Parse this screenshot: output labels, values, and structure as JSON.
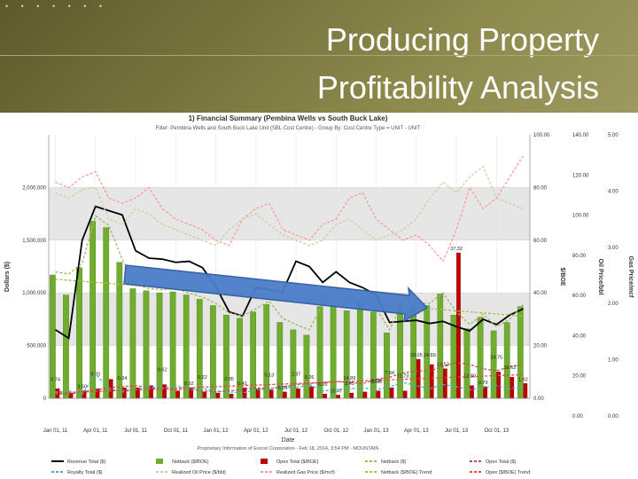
{
  "slide": {
    "title_line1": "Producing Property",
    "title_line2": "Profitability Analysis",
    "dots": "• • • • • • •"
  },
  "chart_data": {
    "type": "bar",
    "title": "1) Financial Summary (Pembina Wells vs South Buck Lake)",
    "subtitle": "Filter: Pembina Wells and South Buck Lake Unit (SBL Cost Centre) - Group By: Cost Centre Type = UNIT - UNIT",
    "xlabel": "Date",
    "ylabel_left": "Dollars ($)",
    "ylabel_right1": "$/BOE",
    "ylabel_right2": "Oil Price/bbl",
    "ylabel_right3": "Gas Price/mcf",
    "footer": "Proprietary Information of Exxcel Corporation - Feb 18, 2014, 3:54 PM - MOUNTAIN",
    "x_ticks": [
      "Jan 01, 11",
      "Apr 01, 11",
      "Jul 01, 11",
      "Oct 01, 11",
      "Jan 01, 12",
      "Apr 01, 12",
      "Jul 01, 12",
      "Oct 01, 12",
      "Jan 01, 13",
      "Apr 01, 13",
      "Jul 01, 13",
      "Oct 01, 13"
    ],
    "left_ticks": [
      "0",
      "500,000",
      "1,000,000",
      "1,500,000",
      "2,000,000"
    ],
    "right1_ticks": [
      "0.00",
      "20.00",
      "40.00",
      "60.00",
      "80.00",
      "100.00"
    ],
    "right2_ticks": [
      "0.00",
      "20.00",
      "40.00",
      "60.00",
      "80.00",
      "100.00",
      "120.00",
      "140.00"
    ],
    "right3_ticks": [
      "0.00",
      "1.00",
      "2.00",
      "3.00",
      "4.00",
      "5.00"
    ],
    "ylim": [
      0,
      2500000
    ],
    "x_months": [
      "2011-01",
      "2011-02",
      "2011-03",
      "2011-04",
      "2011-05",
      "2011-06",
      "2011-07",
      "2011-08",
      "2011-09",
      "2011-10",
      "2011-11",
      "2011-12",
      "2012-01",
      "2012-02",
      "2012-03",
      "2012-04",
      "2012-05",
      "2012-06",
      "2012-07",
      "2012-08",
      "2012-09",
      "2012-10",
      "2012-11",
      "2012-12",
      "2013-01",
      "2013-02",
      "2013-03",
      "2013-04",
      "2013-05",
      "2013-06",
      "2013-07",
      "2013-08",
      "2013-09",
      "2013-10",
      "2013-11",
      "2013-12"
    ],
    "series": [
      {
        "name": "Revenue Total ($)",
        "kind": "line",
        "color": "#000000",
        "values": [
          650000,
          570000,
          1500000,
          1820000,
          1780000,
          1740000,
          1400000,
          1330000,
          1320000,
          1290000,
          1300000,
          1240000,
          1060000,
          820000,
          780000,
          1050000,
          1030000,
          1010000,
          1300000,
          1250000,
          1100000,
          1200000,
          1100000,
          1050000,
          980000,
          720000,
          730000,
          740000,
          710000,
          730000,
          680000,
          640000,
          750000,
          700000,
          790000,
          850000
        ]
      },
      {
        "name": "Netback ($/BOE)",
        "kind": "bar",
        "color": "#70ad2f",
        "values": [
          1170000,
          980000,
          1240000,
          1680000,
          1620000,
          1290000,
          1040000,
          1020000,
          1000000,
          1010000,
          980000,
          940000,
          880000,
          790000,
          760000,
          820000,
          890000,
          720000,
          650000,
          600000,
          870000,
          880000,
          830000,
          920000,
          820000,
          620000,
          900000,
          870000,
          880000,
          990000,
          790000,
          660000,
          770000,
          640000,
          720000,
          870000
        ]
      },
      {
        "name": "Opex Total ($/BOE)",
        "kind": "bar",
        "color": "#c00000",
        "values": [
          90000,
          50000,
          70000,
          90000,
          180000,
          100000,
          100000,
          120000,
          130000,
          70000,
          100000,
          60000,
          50000,
          40000,
          100000,
          90000,
          80000,
          60000,
          90000,
          110000,
          40000,
          30000,
          50000,
          60000,
          70000,
          100000,
          70000,
          370000,
          320000,
          280000,
          1380000,
          120000,
          110000,
          250000,
          200000,
          140000
        ]
      },
      {
        "name": "Netback ($)",
        "kind": "line",
        "color": "#9bbb59",
        "dashed": true,
        "values": [
          1200000,
          1180000,
          1280000,
          1730000,
          1640000,
          1320000,
          1080000,
          1040000,
          1030000,
          1040000,
          1000000,
          960000,
          900000,
          810000,
          780000,
          850000,
          920000,
          760000,
          700000,
          650000,
          900000,
          920000,
          860000,
          940000,
          850000,
          650000,
          920000,
          900000,
          900000,
          1000000,
          820000,
          700000,
          800000,
          680000,
          750000,
          890000
        ]
      },
      {
        "name": "Opex Total ($)",
        "kind": "line",
        "color": "#c0504d",
        "dashed": true,
        "values": [
          40000,
          40000,
          60000,
          80000,
          100000,
          110000,
          120000,
          100000,
          90000,
          80000,
          90000,
          70000,
          60000,
          70000,
          80000,
          100000,
          90000,
          110000,
          130000,
          140000,
          150000,
          160000,
          150000,
          140000,
          180000,
          200000,
          240000,
          260000,
          260000,
          300000,
          340000,
          320000,
          280000,
          260000,
          300000,
          320000
        ]
      },
      {
        "name": "Royalty Total ($)",
        "kind": "line",
        "color": "#4bacc6",
        "dashed": true,
        "values": [
          60000,
          70000,
          40000,
          230000,
          90000,
          60000,
          80000,
          110000,
          100000,
          120000,
          80000,
          90000,
          70000,
          60000,
          50000,
          80000,
          90000,
          110000,
          100000,
          130000,
          70000,
          80000,
          90000,
          100000,
          80000,
          110000,
          150000,
          120000,
          90000,
          130000,
          110000,
          80000,
          100000,
          120000,
          90000,
          110000
        ]
      },
      {
        "name": "Realized Oil Price ($/bbl)",
        "kind": "line",
        "color": "#c3d69b",
        "dashed": true,
        "values": [
          1950000,
          1900000,
          1980000,
          2000000,
          1700000,
          1650000,
          1800000,
          1750000,
          1650000,
          1600000,
          1550000,
          1500000,
          1450000,
          1600000,
          1700000,
          1750000,
          1650000,
          1550000,
          1500000,
          1450000,
          1500000,
          1650000,
          1700000,
          1600000,
          1500000,
          1550000,
          1600000,
          1700000,
          1900000,
          2050000,
          1950000,
          2100000,
          2200000,
          1900000,
          1850000,
          1800000
        ]
      },
      {
        "name": "Realized Gas Price ($/mcf)",
        "kind": "line",
        "color": "#ff9999",
        "dashed": true,
        "values": [
          2050000,
          2000000,
          2100000,
          2150000,
          1900000,
          1850000,
          1900000,
          2000000,
          1800000,
          1700000,
          1650000,
          1600000,
          1500000,
          1450000,
          1700000,
          1800000,
          1850000,
          1600000,
          1550000,
          1500000,
          1650000,
          1700000,
          1900000,
          1950000,
          1700000,
          1600000,
          1500000,
          1550000,
          1450000,
          1300000,
          1600000,
          2000000,
          1800000,
          1900000,
          2100000,
          2300000
        ]
      },
      {
        "name": "Netback ($/BOE) Trend",
        "kind": "line",
        "color": "#a9c23f",
        "dashed": true,
        "values": [
          1130000,
          1120000,
          1110000,
          1100000,
          1090000,
          1080000,
          1070000,
          1060000,
          1050000,
          1040000,
          1030000,
          1020000,
          1010000,
          1000000,
          990000,
          980000,
          970000,
          960000,
          950000,
          940000,
          930000,
          920000,
          910000,
          900000,
          890000,
          880000,
          870000,
          860000,
          850000,
          840000,
          830000,
          820000,
          810000,
          800000,
          790000,
          780000
        ]
      },
      {
        "name": "Opex ($/BOE) Trend",
        "kind": "line",
        "color": "#e84b4b",
        "dashed": true,
        "values": [
          50000,
          55000,
          60000,
          65000,
          70000,
          75000,
          80000,
          85000,
          90000,
          95000,
          100000,
          105000,
          110000,
          115000,
          120000,
          125000,
          130000,
          135000,
          140000,
          145000,
          150000,
          155000,
          160000,
          165000,
          170000,
          175000,
          180000,
          185000,
          190000,
          195000,
          200000,
          205000,
          210000,
          215000,
          220000,
          225000
        ]
      }
    ],
    "annotations": [
      "37.32",
      "24.89",
      "24.75",
      "20.05",
      "15.62",
      "14.89",
      "13.53",
      "12.80",
      "11.73",
      "10.47",
      "10.36",
      "9.70",
      "8.52",
      "8.26",
      "7.84",
      "6.69",
      "6.00",
      "5.13",
      "3.50",
      "3.45",
      "2.85",
      "1.62",
      "1.52",
      "1.37",
      "0.79",
      "0.74",
      "0.62",
      "0.41",
      "0.34",
      "0.22"
    ],
    "legend_placement": "bottom",
    "bands": "alternating gray horizontal bands",
    "overlay_arrow": "blue arrow pointing right over the chart"
  }
}
